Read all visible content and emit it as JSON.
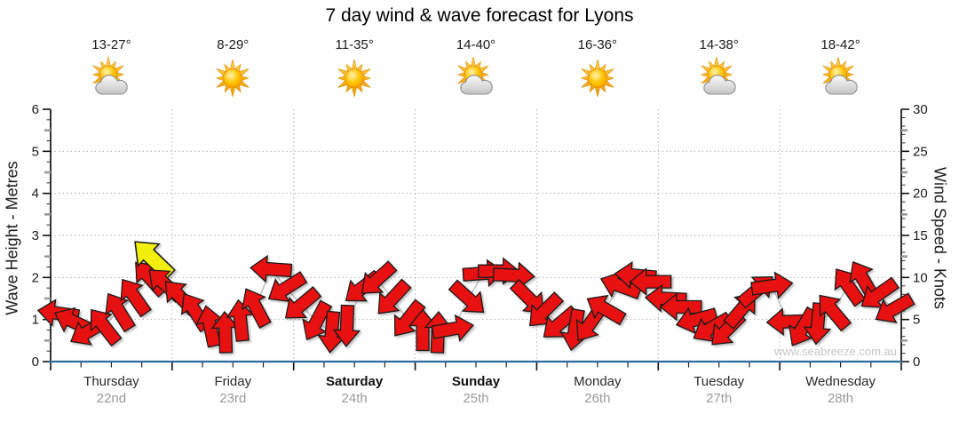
{
  "title": "7 day wind & wave forecast for Lyons",
  "watermark": "www.seabreeze.com.au",
  "colors": {
    "arrow_red": "#e81111",
    "arrow_outline": "#1a1a1a",
    "arrow_highlight_yellow": "#f2ee0e",
    "bottom_axis_blue": "#2d6d9d",
    "gridline_gray": "#b0b0b0",
    "date_gray": "#9a9a9a",
    "watermark_gray": "#c6c6c6",
    "sun_orange": "#ffb200",
    "cloud_gray": "#d9d9d9"
  },
  "days": [
    {
      "name": "Thursday",
      "date": "22nd",
      "temp": "13-27°",
      "icon": "sun-cloud-icon",
      "bold": false
    },
    {
      "name": "Friday",
      "date": "23rd",
      "temp": "8-29°",
      "icon": "sun-icon",
      "bold": false
    },
    {
      "name": "Saturday",
      "date": "24th",
      "temp": "11-35°",
      "icon": "sun-icon",
      "bold": true
    },
    {
      "name": "Sunday",
      "date": "25th",
      "temp": "14-40°",
      "icon": "sun-cloud-icon",
      "bold": true
    },
    {
      "name": "Monday",
      "date": "26th",
      "temp": "16-36°",
      "icon": "sun-icon",
      "bold": false
    },
    {
      "name": "Tuesday",
      "date": "27th",
      "temp": "14-38°",
      "icon": "sun-cloud-icon",
      "bold": false
    },
    {
      "name": "Wednesday",
      "date": "28th",
      "temp": "18-42°",
      "icon": "sun-cloud-icon",
      "bold": false
    }
  ],
  "chart_data": {
    "type": "wind-arrow-series",
    "title": "7 day wind & wave forecast for Lyons",
    "y_left": {
      "label": "Wave Height - Metres",
      "min": 0,
      "max": 6,
      "tick_step": 1
    },
    "y_right": {
      "label": "Wind Speed - Knots",
      "min": 0,
      "max": 30,
      "tick_step": 5
    },
    "grid": {
      "horizontal_at_metres": [
        1,
        2,
        3,
        4,
        5
      ],
      "vertical_at_day_boundaries": true
    },
    "arrow_dir_convention": "screen angle in degrees: 0 = arrow points right, 90 = down, 180 = left, 270 = up",
    "slots_per_day": 8,
    "points": [
      {
        "day": 0,
        "slot": 0,
        "wave_m": 1.15,
        "dir": 188
      },
      {
        "day": 0,
        "slot": 1,
        "wave_m": 0.95,
        "dir": 205
      },
      {
        "day": 0,
        "slot": 2,
        "wave_m": 0.72,
        "dir": 150
      },
      {
        "day": 0,
        "slot": 3,
        "wave_m": 0.85,
        "dir": 232
      },
      {
        "day": 0,
        "slot": 4,
        "wave_m": 1.2,
        "dir": 238
      },
      {
        "day": 0,
        "slot": 5,
        "wave_m": 1.55,
        "dir": 235
      },
      {
        "day": 0,
        "slot": 6,
        "wave_m": 2.0,
        "dir": 228
      },
      {
        "day": 0,
        "slot": 7,
        "wave_m": 1.85,
        "dir": 222
      },
      {
        "day": 1,
        "slot": 0,
        "wave_m": 1.55,
        "dir": 226
      },
      {
        "day": 1,
        "slot": 1,
        "wave_m": 1.2,
        "dir": 238
      },
      {
        "day": 1,
        "slot": 2,
        "wave_m": 0.85,
        "dir": 258
      },
      {
        "day": 1,
        "slot": 3,
        "wave_m": 0.7,
        "dir": 268
      },
      {
        "day": 1,
        "slot": 4,
        "wave_m": 0.98,
        "dir": 264
      },
      {
        "day": 1,
        "slot": 5,
        "wave_m": 1.3,
        "dir": 242
      },
      {
        "day": 1,
        "slot": 6,
        "wave_m": 2.2,
        "dir": 184
      },
      {
        "day": 1,
        "slot": 7,
        "wave_m": 1.75,
        "dir": 148
      },
      {
        "day": 2,
        "slot": 0,
        "wave_m": 1.35,
        "dir": 140
      },
      {
        "day": 2,
        "slot": 1,
        "wave_m": 0.95,
        "dir": 118
      },
      {
        "day": 2,
        "slot": 2,
        "wave_m": 0.7,
        "dir": 95
      },
      {
        "day": 2,
        "slot": 3,
        "wave_m": 0.85,
        "dir": 92
      },
      {
        "day": 2,
        "slot": 4,
        "wave_m": 1.75,
        "dir": 142
      },
      {
        "day": 2,
        "slot": 5,
        "wave_m": 1.95,
        "dir": 138
      },
      {
        "day": 2,
        "slot": 6,
        "wave_m": 1.5,
        "dir": 133
      },
      {
        "day": 2,
        "slot": 7,
        "wave_m": 1.0,
        "dir": 128
      },
      {
        "day": 3,
        "slot": 0,
        "wave_m": 0.75,
        "dir": 270
      },
      {
        "day": 3,
        "slot": 1,
        "wave_m": 0.7,
        "dir": 272
      },
      {
        "day": 3,
        "slot": 2,
        "wave_m": 0.78,
        "dir": 350
      },
      {
        "day": 3,
        "slot": 3,
        "wave_m": 1.5,
        "dir": 42
      },
      {
        "day": 3,
        "slot": 4,
        "wave_m": 2.1,
        "dir": 356
      },
      {
        "day": 3,
        "slot": 5,
        "wave_m": 2.15,
        "dir": 0
      },
      {
        "day": 3,
        "slot": 6,
        "wave_m": 2.05,
        "dir": 3
      },
      {
        "day": 3,
        "slot": 7,
        "wave_m": 1.5,
        "dir": 45
      },
      {
        "day": 4,
        "slot": 0,
        "wave_m": 1.2,
        "dir": 135
      },
      {
        "day": 4,
        "slot": 1,
        "wave_m": 0.9,
        "dir": 140
      },
      {
        "day": 4,
        "slot": 2,
        "wave_m": 0.75,
        "dir": 100
      },
      {
        "day": 4,
        "slot": 3,
        "wave_m": 0.9,
        "dir": 125
      },
      {
        "day": 4,
        "slot": 4,
        "wave_m": 1.25,
        "dir": 210
      },
      {
        "day": 4,
        "slot": 5,
        "wave_m": 1.8,
        "dir": 200
      },
      {
        "day": 4,
        "slot": 6,
        "wave_m": 2.05,
        "dir": 185
      },
      {
        "day": 4,
        "slot": 7,
        "wave_m": 1.9,
        "dir": 180
      },
      {
        "day": 5,
        "slot": 0,
        "wave_m": 1.5,
        "dir": 183
      },
      {
        "day": 5,
        "slot": 1,
        "wave_m": 1.3,
        "dir": 180
      },
      {
        "day": 5,
        "slot": 2,
        "wave_m": 1.0,
        "dir": 165
      },
      {
        "day": 5,
        "slot": 3,
        "wave_m": 0.8,
        "dir": 150
      },
      {
        "day": 5,
        "slot": 4,
        "wave_m": 0.75,
        "dir": 135
      },
      {
        "day": 5,
        "slot": 5,
        "wave_m": 1.25,
        "dir": 310
      },
      {
        "day": 5,
        "slot": 6,
        "wave_m": 1.7,
        "dir": 320
      },
      {
        "day": 5,
        "slot": 7,
        "wave_m": 1.8,
        "dir": 352
      },
      {
        "day": 6,
        "slot": 0,
        "wave_m": 0.95,
        "dir": 178
      },
      {
        "day": 6,
        "slot": 1,
        "wave_m": 0.8,
        "dir": 120
      },
      {
        "day": 6,
        "slot": 2,
        "wave_m": 0.9,
        "dir": 95
      },
      {
        "day": 6,
        "slot": 3,
        "wave_m": 1.2,
        "dir": 230
      },
      {
        "day": 6,
        "slot": 4,
        "wave_m": 1.8,
        "dir": 235
      },
      {
        "day": 6,
        "slot": 5,
        "wave_m": 1.95,
        "dir": 240
      },
      {
        "day": 6,
        "slot": 6,
        "wave_m": 1.6,
        "dir": 145
      },
      {
        "day": 6,
        "slot": 7,
        "wave_m": 1.25,
        "dir": 150
      }
    ],
    "highlight_point": {
      "day": 0,
      "slot": 6.2,
      "wave_m": 2.45,
      "dir": 224,
      "color": "yellow"
    }
  }
}
